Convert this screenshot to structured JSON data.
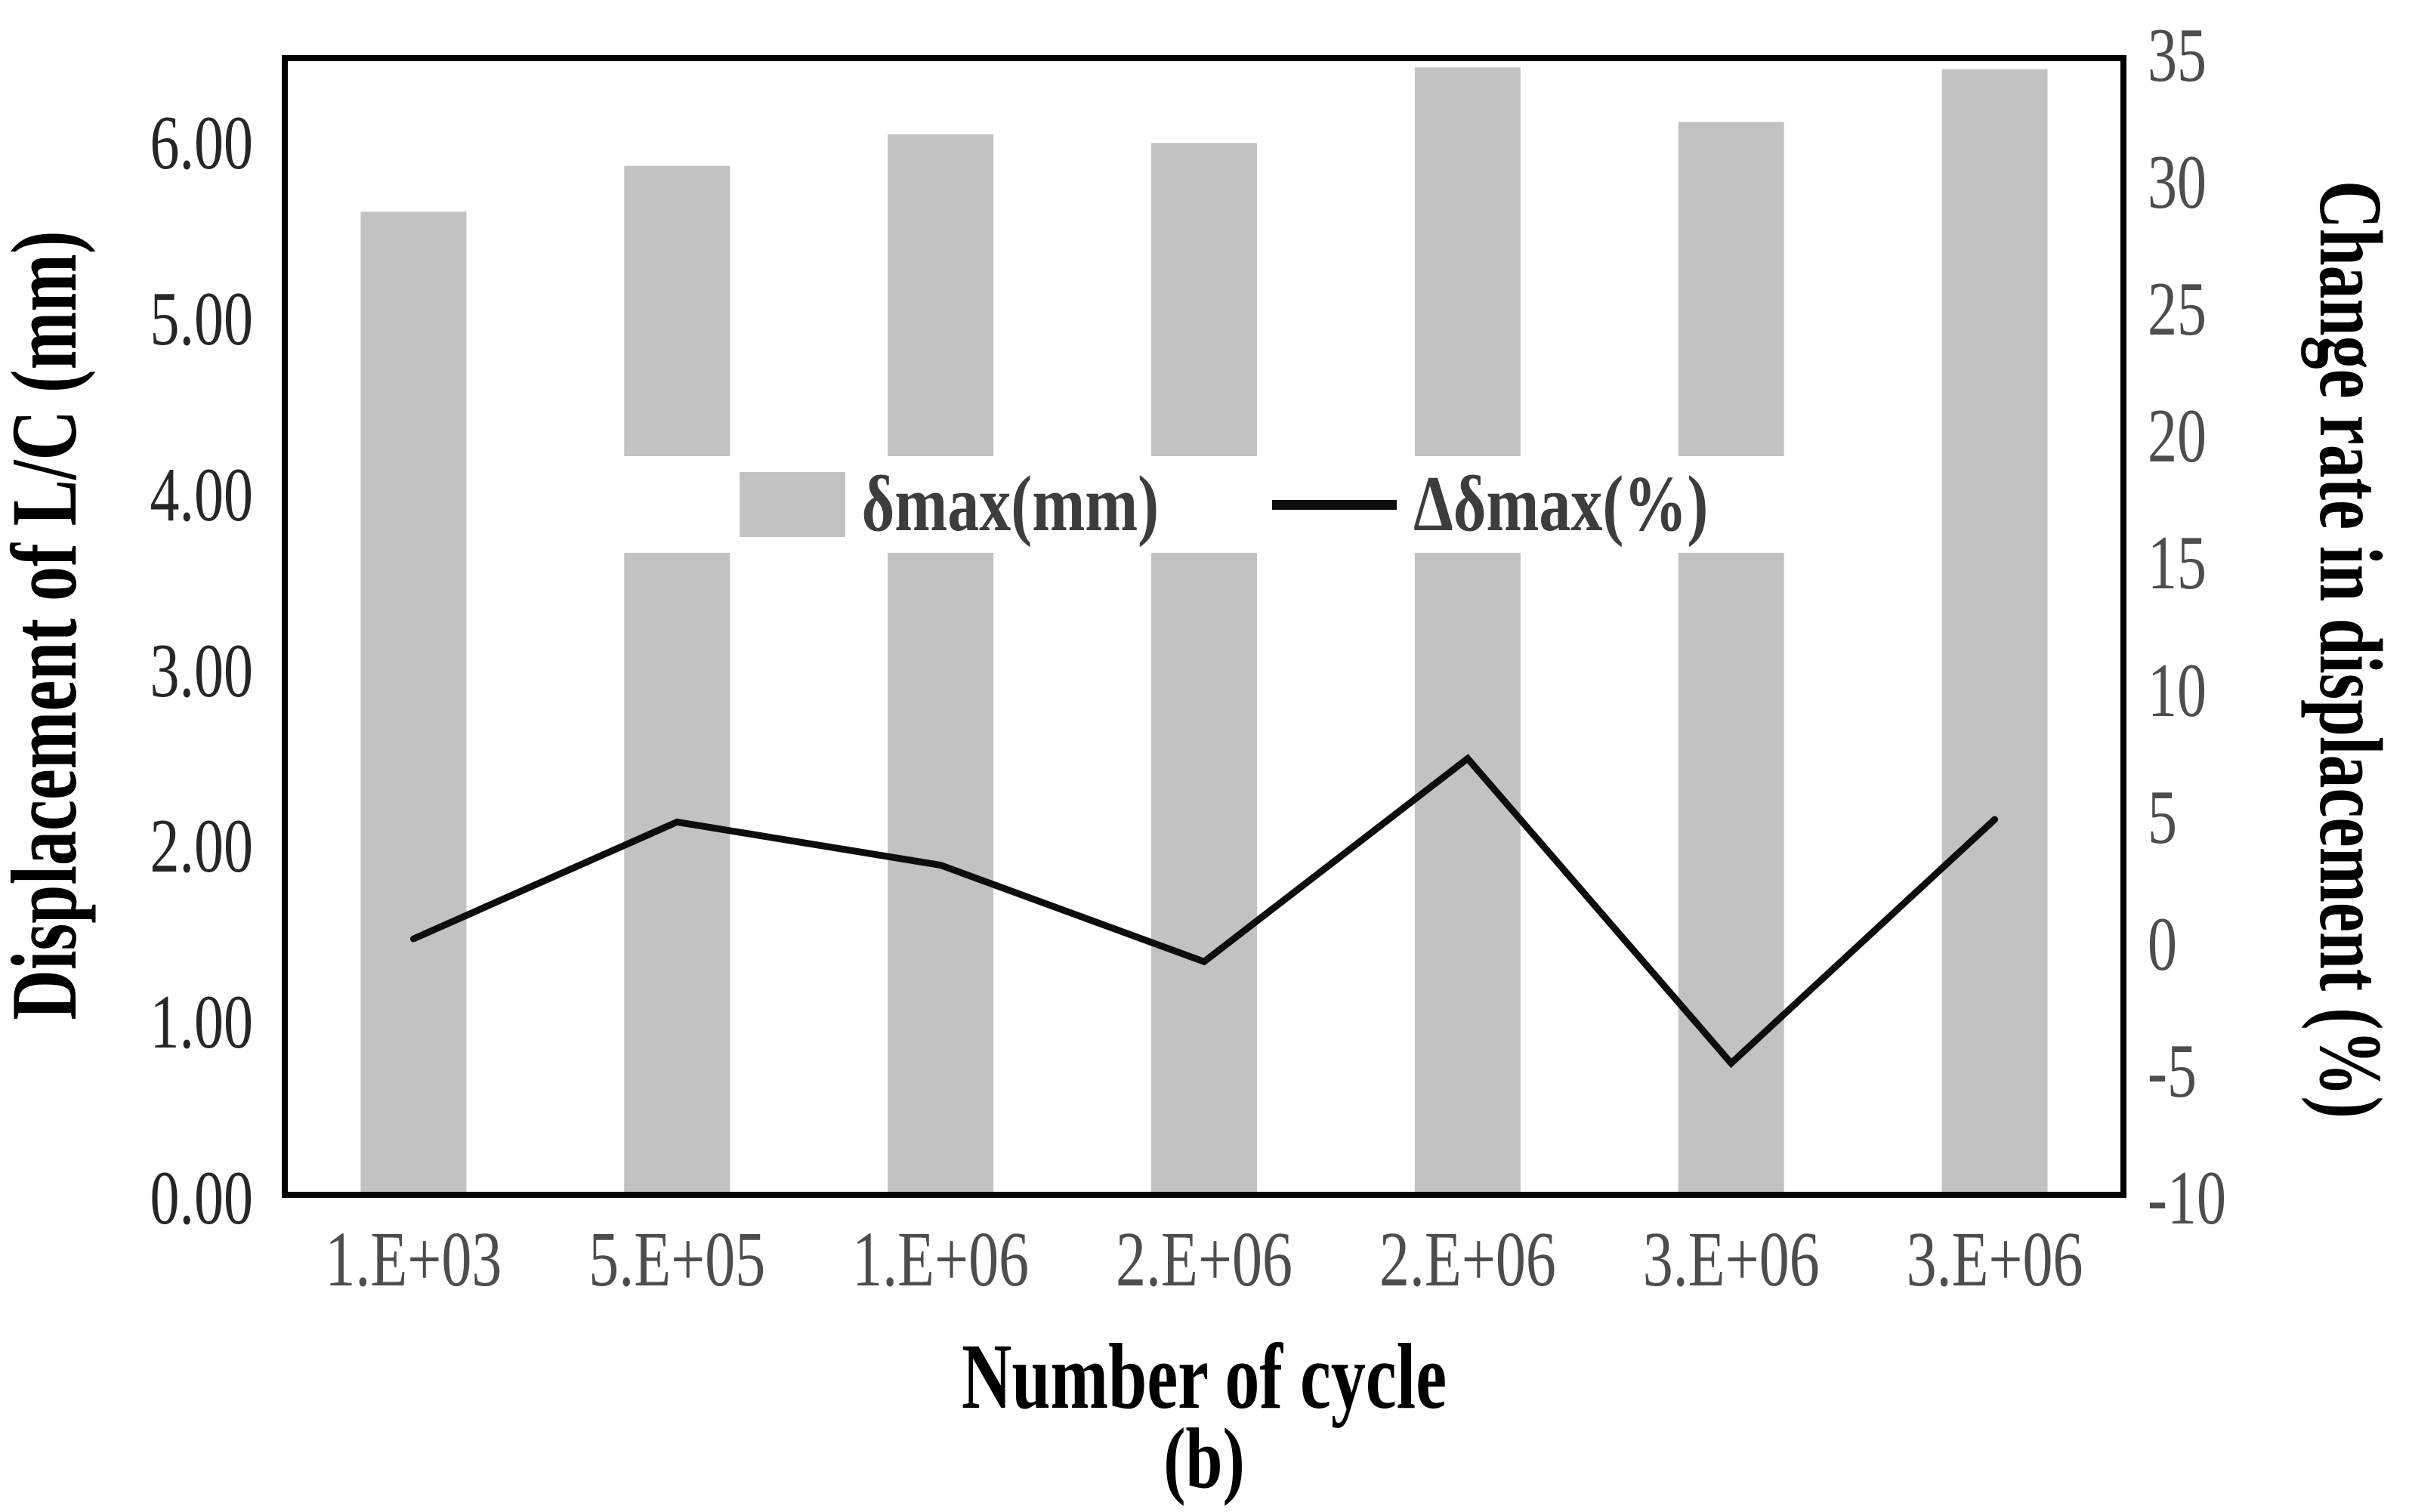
{
  "figure": {
    "caption": "(b)"
  },
  "chart_data": {
    "type": "bar+line combo, dual y-axes",
    "title": "",
    "categories": [
      "1.E+03",
      "5.E+05",
      "1.E+06",
      "2.E+06",
      "2.E+06",
      "3.E+06",
      "3.E+06"
    ],
    "xlabel": "Number of cycle",
    "series": [
      {
        "name": "δmax(mm)",
        "type": "bar",
        "axis": "left",
        "values": [
          5.61,
          5.87,
          6.05,
          6.0,
          6.43,
          6.12,
          6.42
        ]
      },
      {
        "name": "Δδmax(%)",
        "type": "line",
        "axis": "right",
        "values": [
          0.2,
          4.8,
          3.1,
          -0.7,
          7.3,
          -4.7,
          4.9
        ]
      }
    ],
    "left_axis": {
      "label": "Displacement of L/C (mm)",
      "min": 0,
      "max": 6.5,
      "ticks": [
        0,
        1,
        2,
        3,
        4,
        5,
        6
      ],
      "tick_labels": [
        "0.00",
        "1.00",
        "2.00",
        "3.00",
        "4.00",
        "5.00",
        "6.00"
      ]
    },
    "right_axis": {
      "label": "Change rate in displacement (%)",
      "min": -10,
      "max": 35,
      "ticks": [
        -10,
        -5,
        0,
        5,
        10,
        15,
        20,
        25,
        30,
        35
      ],
      "tick_labels": [
        "-10",
        "-5",
        "0",
        "5",
        "10",
        "15",
        "20",
        "25",
        "30",
        "35"
      ]
    },
    "legend": {
      "position": "center",
      "entries": [
        "δmax(mm)",
        "Δδmax(%)"
      ]
    },
    "grid": false,
    "colors": {
      "bar": "#c2c2c2",
      "line": "#0d0d0d",
      "border": "#000000",
      "left_tick": "#262626",
      "right_tick": "#4d4d4d",
      "x_tick": "#4d4d4d",
      "title": "#000000",
      "legend_text": "#3d3d3d",
      "background": "#ffffff"
    }
  }
}
